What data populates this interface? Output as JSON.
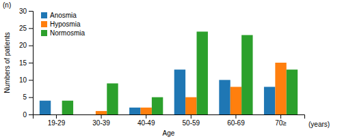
{
  "chart_data": {
    "type": "bar",
    "categories": [
      "19-29",
      "30-39",
      "40-49",
      "50-59",
      "60-69",
      "70≥"
    ],
    "series": [
      {
        "name": "Anosmia",
        "values": [
          4,
          0,
          2,
          13,
          10,
          8
        ]
      },
      {
        "name": "Hyposmia",
        "values": [
          0,
          1,
          2,
          5,
          8,
          15
        ]
      },
      {
        "name": "Normosmia",
        "values": [
          4,
          9,
          5,
          24,
          23,
          13
        ]
      }
    ],
    "xlabel": "Age",
    "ylabel": "Numbers of patients",
    "annotations": [
      "(n)",
      "(years)"
    ],
    "ylim": [
      0,
      30
    ],
    "yticks": [
      0,
      5,
      10,
      15,
      20,
      25,
      30
    ],
    "grid": false,
    "legend": "upper left"
  }
}
